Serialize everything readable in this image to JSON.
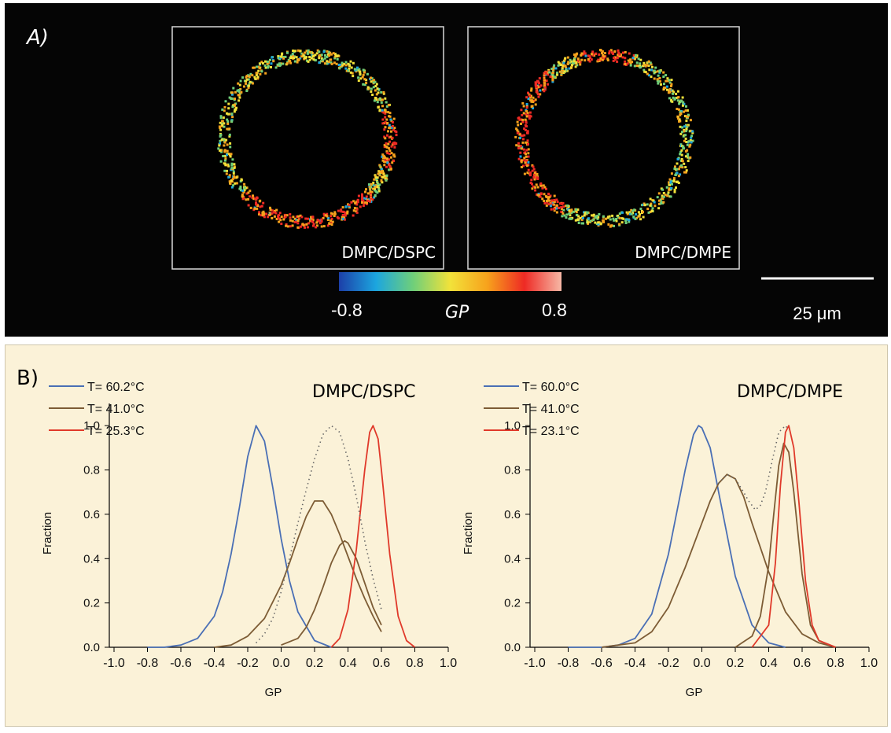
{
  "panel_a": {
    "label": "A)",
    "images": [
      {
        "label": "DMPC/DSPC"
      },
      {
        "label": "DMPC/DMPE"
      }
    ],
    "colorbar": {
      "min_label": "-0.8",
      "max_label": "0.8",
      "axis_label": "GP",
      "stops": [
        "#1c3fa8",
        "#1ca6df",
        "#6fcf7a",
        "#f2e23a",
        "#f7a21c",
        "#ee2a24",
        "#f6b8a6"
      ]
    },
    "scalebar": {
      "label": "25 μm"
    }
  },
  "panel_b": {
    "label": "B)"
  },
  "chart_data": [
    {
      "type": "line",
      "title": "DMPC/DSPC",
      "xlabel": "GP",
      "ylabel": "Fraction",
      "xlim": [
        -1.0,
        1.0
      ],
      "ylim": [
        0,
        1.1
      ],
      "xticks": [
        "-1.0",
        "-0.8",
        "-0.6",
        "-0.4",
        "-0.2",
        "0.0",
        "0.2",
        "0.4",
        "0.6",
        "0.8",
        "1.0"
      ],
      "yticks": [
        "0.0",
        "0.2",
        "0.4",
        "0.6",
        "0.8",
        "1.0"
      ],
      "legend": [
        {
          "label": "T= 60.2°C",
          "color": "#4a6fb5"
        },
        {
          "label": "T= 41.0°C",
          "color": "#7d5c35"
        },
        {
          "label": "T= 25.3°C",
          "color": "#e0392a"
        }
      ],
      "series": [
        {
          "color": "#4a6fb5",
          "style": "solid",
          "x": [
            -0.8,
            -0.7,
            -0.6,
            -0.5,
            -0.4,
            -0.35,
            -0.3,
            -0.25,
            -0.2,
            -0.15,
            -0.1,
            -0.05,
            0.0,
            0.05,
            0.1,
            0.2,
            0.3
          ],
          "y": [
            0.0,
            0.0,
            0.01,
            0.04,
            0.14,
            0.25,
            0.42,
            0.63,
            0.86,
            1.0,
            0.93,
            0.72,
            0.49,
            0.3,
            0.16,
            0.03,
            0.0
          ]
        },
        {
          "color": "#7d5c35",
          "style": "solid",
          "x": [
            -0.4,
            -0.3,
            -0.2,
            -0.1,
            0.0,
            0.05,
            0.1,
            0.15,
            0.2,
            0.25,
            0.3,
            0.35,
            0.4,
            0.45,
            0.5,
            0.55,
            0.6
          ],
          "y": [
            0.0,
            0.01,
            0.05,
            0.13,
            0.28,
            0.38,
            0.49,
            0.59,
            0.66,
            0.66,
            0.6,
            0.51,
            0.41,
            0.31,
            0.22,
            0.14,
            0.07
          ]
        },
        {
          "color": "#7d5c35",
          "style": "solid",
          "x": [
            0.0,
            0.1,
            0.15,
            0.2,
            0.25,
            0.3,
            0.35,
            0.38,
            0.4,
            0.45,
            0.5,
            0.55,
            0.6
          ],
          "y": [
            0.01,
            0.04,
            0.09,
            0.17,
            0.27,
            0.38,
            0.46,
            0.48,
            0.47,
            0.4,
            0.29,
            0.18,
            0.1
          ]
        },
        {
          "color": "#e0392a",
          "style": "solid",
          "x": [
            0.3,
            0.35,
            0.4,
            0.45,
            0.5,
            0.53,
            0.55,
            0.58,
            0.6,
            0.65,
            0.7,
            0.75,
            0.8
          ],
          "y": [
            0.0,
            0.04,
            0.17,
            0.44,
            0.8,
            0.97,
            1.0,
            0.94,
            0.8,
            0.42,
            0.14,
            0.03,
            0.0
          ]
        },
        {
          "color": "#666666",
          "style": "dotted",
          "x": [
            -0.15,
            -0.1,
            -0.05,
            0.0,
            0.05,
            0.1,
            0.15,
            0.2,
            0.25,
            0.3,
            0.35,
            0.4,
            0.45,
            0.5,
            0.55,
            0.6
          ],
          "y": [
            0.02,
            0.06,
            0.13,
            0.25,
            0.4,
            0.56,
            0.71,
            0.85,
            0.96,
            1.0,
            0.97,
            0.85,
            0.68,
            0.48,
            0.31,
            0.17
          ]
        }
      ]
    },
    {
      "type": "line",
      "title": "DMPC/DMPE",
      "xlabel": "GP",
      "ylabel": "Fraction",
      "xlim": [
        -1.0,
        1.0
      ],
      "ylim": [
        0,
        1.1
      ],
      "xticks": [
        "-1.0",
        "-0.8",
        "-0.6",
        "-0.4",
        "-0.2",
        "0.0",
        "0.2",
        "0.4",
        "0.6",
        "0.8",
        "1.0"
      ],
      "yticks": [
        "0.0",
        "0.2",
        "0.4",
        "0.6",
        "0.8",
        "1.0"
      ],
      "legend": [
        {
          "label": "T= 60.0°C",
          "color": "#4a6fb5"
        },
        {
          "label": "T= 41.0°C",
          "color": "#7d5c35"
        },
        {
          "label": "T= 23.1°C",
          "color": "#e0392a"
        }
      ],
      "series": [
        {
          "color": "#4a6fb5",
          "style": "solid",
          "x": [
            -0.8,
            -0.6,
            -0.5,
            -0.4,
            -0.3,
            -0.2,
            -0.1,
            -0.05,
            -0.02,
            0.0,
            0.05,
            0.1,
            0.2,
            0.3,
            0.4,
            0.5
          ],
          "y": [
            0.0,
            0.0,
            0.01,
            0.04,
            0.15,
            0.42,
            0.8,
            0.96,
            1.0,
            0.99,
            0.9,
            0.7,
            0.32,
            0.1,
            0.02,
            0.0
          ]
        },
        {
          "color": "#7d5c35",
          "style": "solid",
          "x": [
            -0.6,
            -0.4,
            -0.3,
            -0.2,
            -0.1,
            0.0,
            0.05,
            0.1,
            0.15,
            0.2,
            0.25,
            0.3,
            0.4,
            0.5,
            0.6,
            0.7,
            0.8
          ],
          "y": [
            0.0,
            0.02,
            0.07,
            0.18,
            0.36,
            0.56,
            0.66,
            0.74,
            0.78,
            0.76,
            0.68,
            0.56,
            0.34,
            0.16,
            0.06,
            0.02,
            0.0
          ]
        },
        {
          "color": "#7d5c35",
          "style": "solid",
          "x": [
            0.2,
            0.3,
            0.35,
            0.4,
            0.43,
            0.46,
            0.49,
            0.52,
            0.55,
            0.6,
            0.65,
            0.7,
            0.8
          ],
          "y": [
            0.0,
            0.05,
            0.14,
            0.37,
            0.6,
            0.82,
            0.92,
            0.88,
            0.7,
            0.33,
            0.1,
            0.03,
            0.0
          ]
        },
        {
          "color": "#e0392a",
          "style": "solid",
          "x": [
            0.3,
            0.4,
            0.44,
            0.47,
            0.5,
            0.52,
            0.55,
            0.58,
            0.62,
            0.66,
            0.7,
            0.8
          ],
          "y": [
            0.0,
            0.1,
            0.38,
            0.73,
            0.97,
            1.0,
            0.9,
            0.66,
            0.3,
            0.1,
            0.03,
            0.0
          ]
        },
        {
          "color": "#666666",
          "style": "dotted",
          "x": [
            0.1,
            0.15,
            0.2,
            0.25,
            0.28,
            0.3,
            0.32,
            0.35,
            0.38,
            0.42,
            0.46,
            0.5,
            0.52
          ],
          "y": [
            0.74,
            0.78,
            0.76,
            0.7,
            0.66,
            0.64,
            0.62,
            0.64,
            0.7,
            0.84,
            0.97,
            1.0,
            0.98
          ]
        }
      ]
    }
  ]
}
